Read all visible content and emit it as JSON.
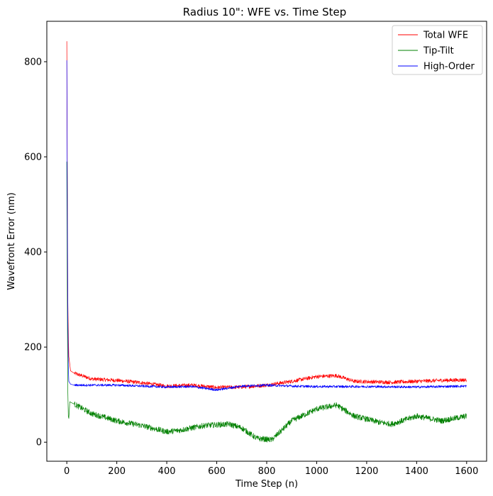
{
  "chart_data": {
    "type": "line",
    "title": "Radius 10\": WFE vs. Time Step",
    "xlabel": "Time Step (n)",
    "ylabel": "Wavefront Error (nm)",
    "xlim": [
      -80,
      1680
    ],
    "ylim": [
      -40,
      885
    ],
    "xticks": [
      "0",
      "200",
      "400",
      "600",
      "800",
      "1000",
      "1200",
      "1400",
      "1600"
    ],
    "yticks": [
      "0",
      "200",
      "400",
      "600",
      "800"
    ],
    "grid": false,
    "legend_position": "top-right",
    "n_points": 1600,
    "series": [
      {
        "name": "Total WFE",
        "color": "#ff0000",
        "initial": [
          [
            0,
            843
          ],
          [
            1,
            700
          ],
          [
            2,
            560
          ],
          [
            3,
            420
          ],
          [
            4,
            300
          ],
          [
            5,
            265
          ],
          [
            6,
            230
          ],
          [
            8,
            180
          ],
          [
            10,
            172
          ],
          [
            15,
            150
          ],
          [
            30,
            145
          ]
        ],
        "trend": [
          [
            30,
            145
          ],
          [
            100,
            133
          ],
          [
            200,
            130
          ],
          [
            300,
            125
          ],
          [
            400,
            118
          ],
          [
            500,
            120
          ],
          [
            600,
            115
          ],
          [
            700,
            116
          ],
          [
            800,
            120
          ],
          [
            900,
            128
          ],
          [
            1000,
            138
          ],
          [
            1080,
            140
          ],
          [
            1150,
            128
          ],
          [
            1300,
            126
          ],
          [
            1400,
            128
          ],
          [
            1500,
            130
          ],
          [
            1600,
            131
          ]
        ],
        "noise": 4
      },
      {
        "name": "Tip-Tilt",
        "color": "#008000",
        "initial": [
          [
            0,
            590
          ],
          [
            1,
            440
          ],
          [
            2,
            300
          ],
          [
            3,
            200
          ],
          [
            4,
            110
          ],
          [
            6,
            55
          ],
          [
            8,
            50
          ],
          [
            12,
            85
          ],
          [
            30,
            80
          ]
        ],
        "trend": [
          [
            30,
            80
          ],
          [
            100,
            60
          ],
          [
            200,
            45
          ],
          [
            300,
            35
          ],
          [
            400,
            22
          ],
          [
            450,
            25
          ],
          [
            550,
            35
          ],
          [
            650,
            38
          ],
          [
            700,
            30
          ],
          [
            760,
            8
          ],
          [
            820,
            5
          ],
          [
            900,
            45
          ],
          [
            1000,
            70
          ],
          [
            1080,
            78
          ],
          [
            1150,
            55
          ],
          [
            1250,
            42
          ],
          [
            1300,
            38
          ],
          [
            1400,
            55
          ],
          [
            1500,
            45
          ],
          [
            1600,
            55
          ]
        ],
        "noise": 6
      },
      {
        "name": "High-Order",
        "color": "#0000ff",
        "initial": [
          [
            0,
            803
          ],
          [
            1,
            650
          ],
          [
            2,
            500
          ],
          [
            3,
            360
          ],
          [
            4,
            260
          ],
          [
            5,
            225
          ],
          [
            6,
            160
          ],
          [
            8,
            128
          ],
          [
            15,
            122
          ],
          [
            30,
            120
          ]
        ],
        "trend": [
          [
            30,
            120
          ],
          [
            200,
            120
          ],
          [
            300,
            118
          ],
          [
            400,
            116
          ],
          [
            500,
            117
          ],
          [
            600,
            110
          ],
          [
            700,
            118
          ],
          [
            800,
            120
          ],
          [
            900,
            118
          ],
          [
            1000,
            117
          ],
          [
            1200,
            117
          ],
          [
            1400,
            116
          ],
          [
            1600,
            118
          ]
        ],
        "noise": 2.5
      }
    ]
  }
}
